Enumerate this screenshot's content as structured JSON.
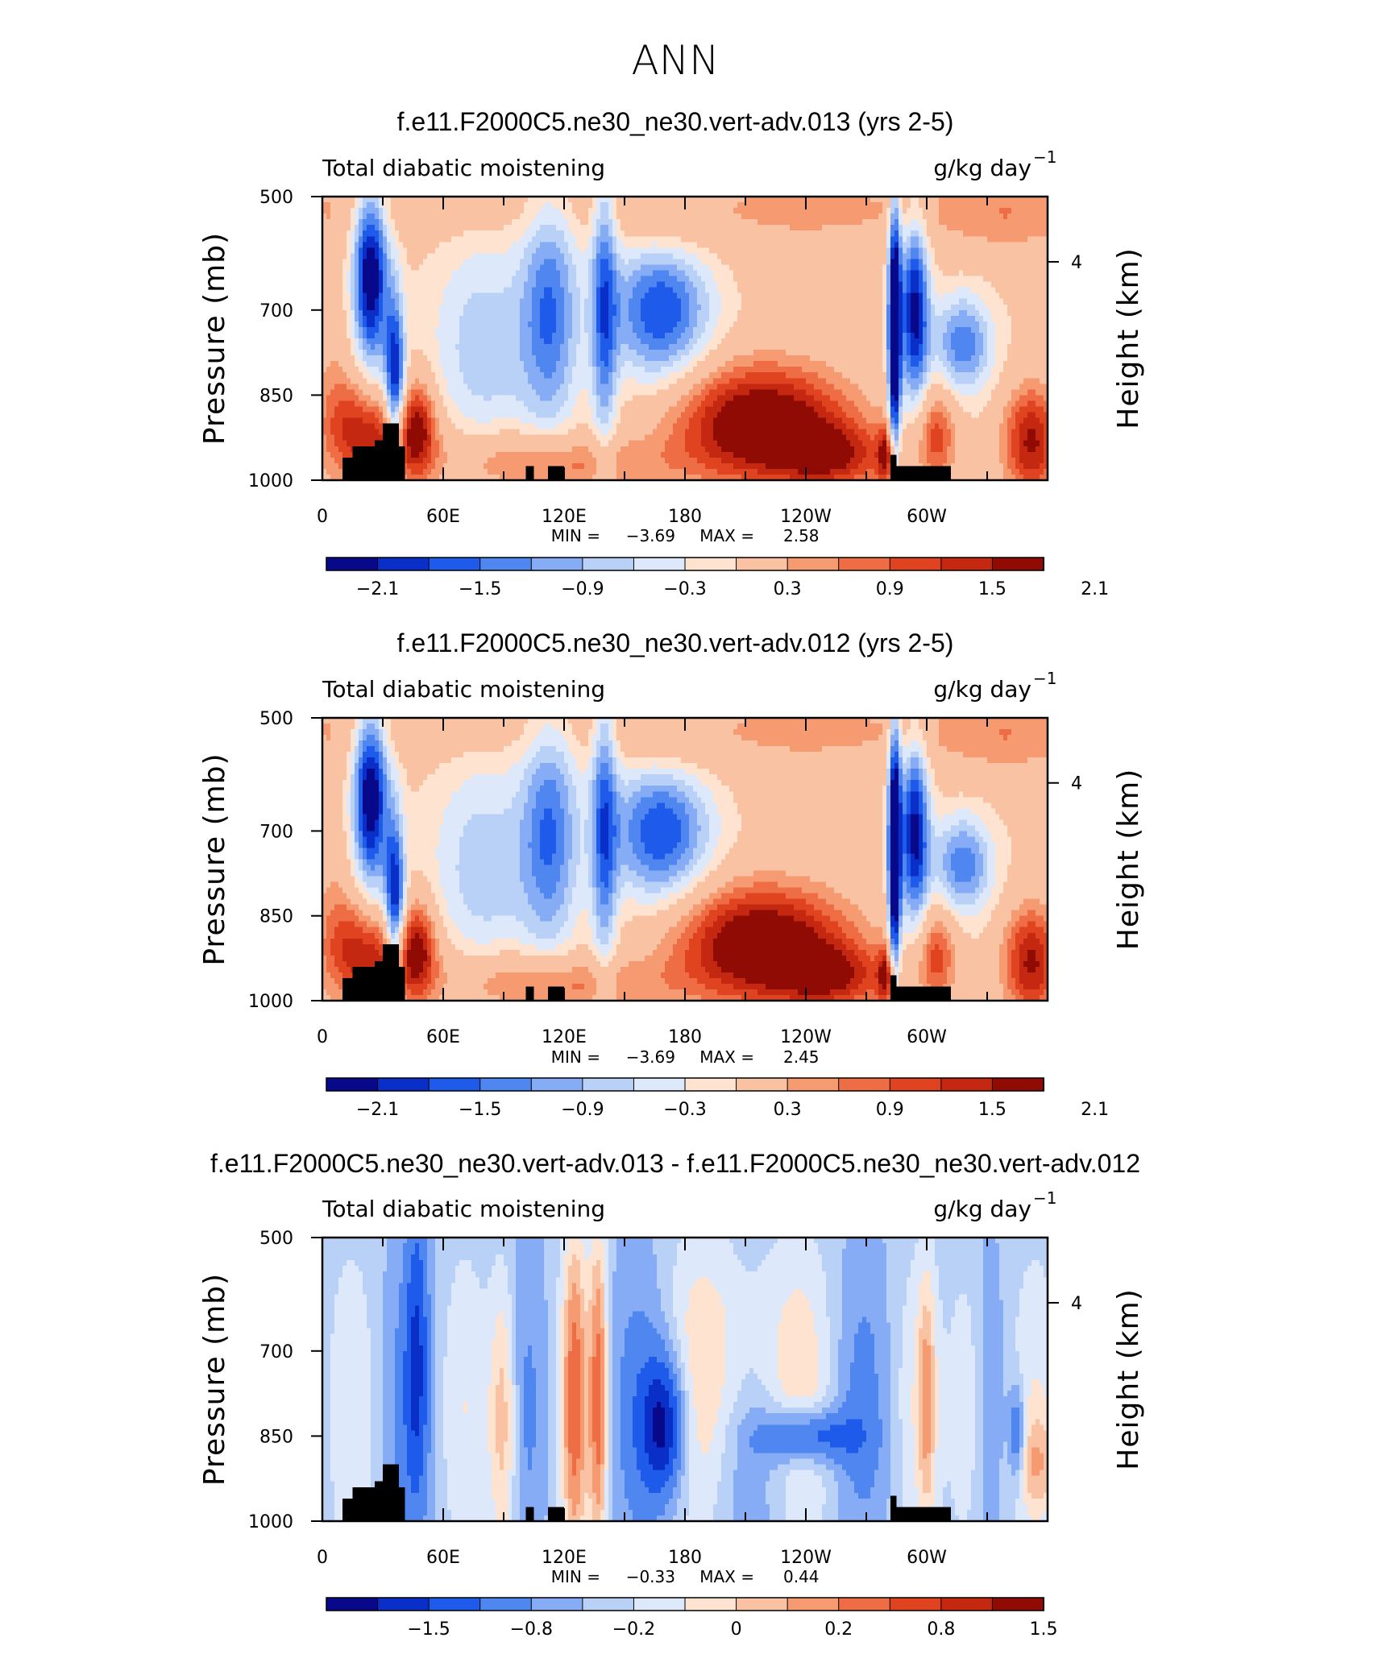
{
  "figure_title": "ANN",
  "colors": {
    "scale_13": [
      "#08088a",
      "#0a2fc8",
      "#1f5bea",
      "#4f86f0",
      "#86acf5",
      "#b9d1f7",
      "#dde9fb",
      "#fde3d0",
      "#f9c2a3",
      "#f69a72",
      "#ee6d44",
      "#e04320",
      "#c52810",
      "#8f0b04"
    ],
    "land": "#000000"
  },
  "chart_data": [
    {
      "type": "heatmap",
      "title": "f.e11.F2000C5.ne30_ne30.vert-adv.013 (yrs 2-5)",
      "left_label": "Total diabatic moistening",
      "units": "g/kg day",
      "units_exponent": "−1",
      "ylabel": "Pressure (mb)",
      "ylabel_right": "Height (km)",
      "y_ticks": [
        "500",
        "700",
        "850",
        "1000"
      ],
      "y_right_ticks": [
        "4"
      ],
      "x_ticks": [
        "0",
        "60E",
        "120E",
        "180",
        "120W",
        "60W"
      ],
      "min_label": "MIN =",
      "min_value": "−3.69",
      "max_label": "MAX =",
      "max_value": "2.58",
      "colorbar_labels": [
        "−2.1",
        "−1.5",
        "−0.9",
        "−0.3",
        "0.3",
        "0.9",
        "1.5",
        "2.1"
      ],
      "field": "full"
    },
    {
      "type": "heatmap",
      "title": "f.e11.F2000C5.ne30_ne30.vert-adv.012 (yrs 2-5)",
      "left_label": "Total diabatic moistening",
      "units": "g/kg day",
      "units_exponent": "−1",
      "ylabel": "Pressure (mb)",
      "ylabel_right": "Height (km)",
      "y_ticks": [
        "500",
        "700",
        "850",
        "1000"
      ],
      "y_right_ticks": [
        "4"
      ],
      "x_ticks": [
        "0",
        "60E",
        "120E",
        "180",
        "120W",
        "60W"
      ],
      "min_label": "MIN =",
      "min_value": "−3.69",
      "max_label": "MAX =",
      "max_value": "2.45",
      "colorbar_labels": [
        "−2.1",
        "−1.5",
        "−0.9",
        "−0.3",
        "0.3",
        "0.9",
        "1.5",
        "2.1"
      ],
      "field": "full"
    },
    {
      "type": "heatmap",
      "title": "f.e11.F2000C5.ne30_ne30.vert-adv.013 - f.e11.F2000C5.ne30_ne30.vert-adv.012",
      "left_label": "Total diabatic moistening",
      "units": "g/kg day",
      "units_exponent": "−1",
      "ylabel": "Pressure (mb)",
      "ylabel_right": "Height (km)",
      "y_ticks": [
        "500",
        "700",
        "850",
        "1000"
      ],
      "y_right_ticks": [
        "4"
      ],
      "x_ticks": [
        "0",
        "60E",
        "120E",
        "180",
        "120W",
        "60W"
      ],
      "min_label": "MIN =",
      "min_value": "−0.33",
      "max_label": "MAX =",
      "max_value": "0.44",
      "colorbar_labels": [
        "−1.5",
        "−0.8",
        "−0.2",
        "0",
        "0.2",
        "0.8",
        "1.5"
      ],
      "field": "diff"
    }
  ]
}
